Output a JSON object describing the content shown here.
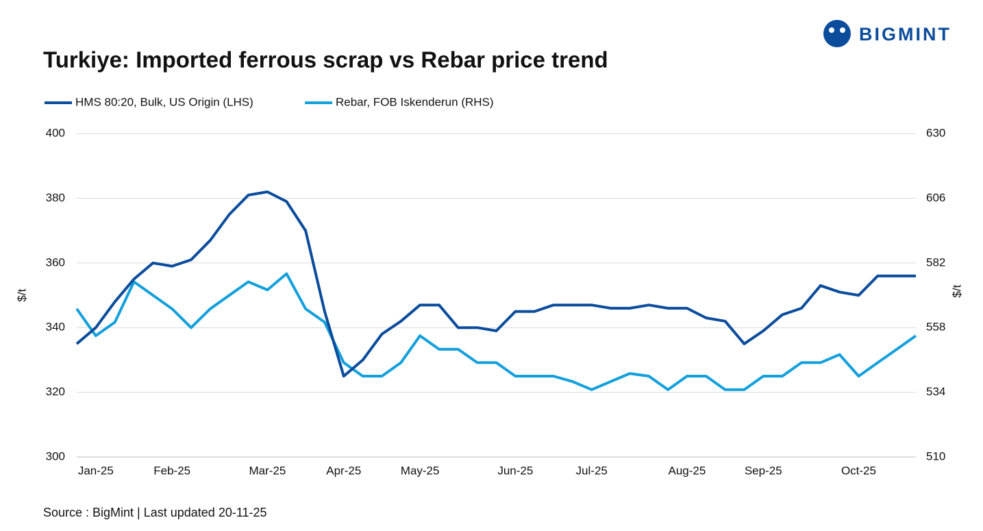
{
  "chart_data": {
    "type": "line",
    "logo": "BIGMINT",
    "title": "Turkiye: Imported ferrous scrap vs Rebar price trend",
    "source": "Source : BigMint | Last updated 20-11-25",
    "ylabel": "$/t",
    "y2label": "$/t",
    "categories": [
      null,
      "Jan-25",
      null,
      null,
      null,
      "Feb-25",
      null,
      null,
      null,
      null,
      "Mar-25",
      null,
      null,
      null,
      "Apr-25",
      null,
      null,
      null,
      "May-25",
      null,
      null,
      null,
      null,
      "Jun-25",
      null,
      null,
      null,
      "Jul-25",
      null,
      null,
      null,
      null,
      "Aug-25",
      null,
      null,
      null,
      "Sep-25",
      null,
      null,
      null,
      null,
      "Oct-25",
      null,
      null,
      null
    ],
    "series": [
      {
        "name": "HMS 80:20, Bulk, US Origin (LHS)",
        "color": "#0b4c9c",
        "axis": "y",
        "values": [
          335,
          340,
          348,
          355,
          360,
          359,
          361,
          367,
          375,
          381,
          382,
          379,
          370,
          345,
          325,
          330,
          338,
          342,
          347,
          347,
          340,
          340,
          339,
          345,
          345,
          347,
          347,
          347,
          346,
          346,
          347,
          346,
          346,
          343,
          342,
          335,
          339,
          344,
          346,
          353,
          351,
          350,
          356,
          356,
          356
        ]
      },
      {
        "name": "Rebar, FOB Iskenderun (RHS)",
        "color": "#13a0dc",
        "axis": "y2",
        "values": [
          565,
          555,
          560,
          575,
          570,
          565,
          558,
          565,
          570,
          575,
          572,
          578,
          565,
          560,
          545,
          540,
          540,
          545,
          555,
          550,
          550,
          545,
          545,
          540,
          540,
          540,
          538,
          535,
          538,
          541,
          540,
          535,
          540,
          540,
          535,
          535,
          540,
          540,
          545,
          545,
          548,
          540,
          545,
          550,
          555
        ]
      }
    ],
    "ylim": [
      300,
      400
    ],
    "yticks": [
      300,
      320,
      340,
      360,
      380,
      400
    ],
    "y2lim": [
      510,
      630
    ],
    "y2ticks": [
      510,
      534,
      558,
      582,
      606,
      630
    ],
    "grid": true
  }
}
